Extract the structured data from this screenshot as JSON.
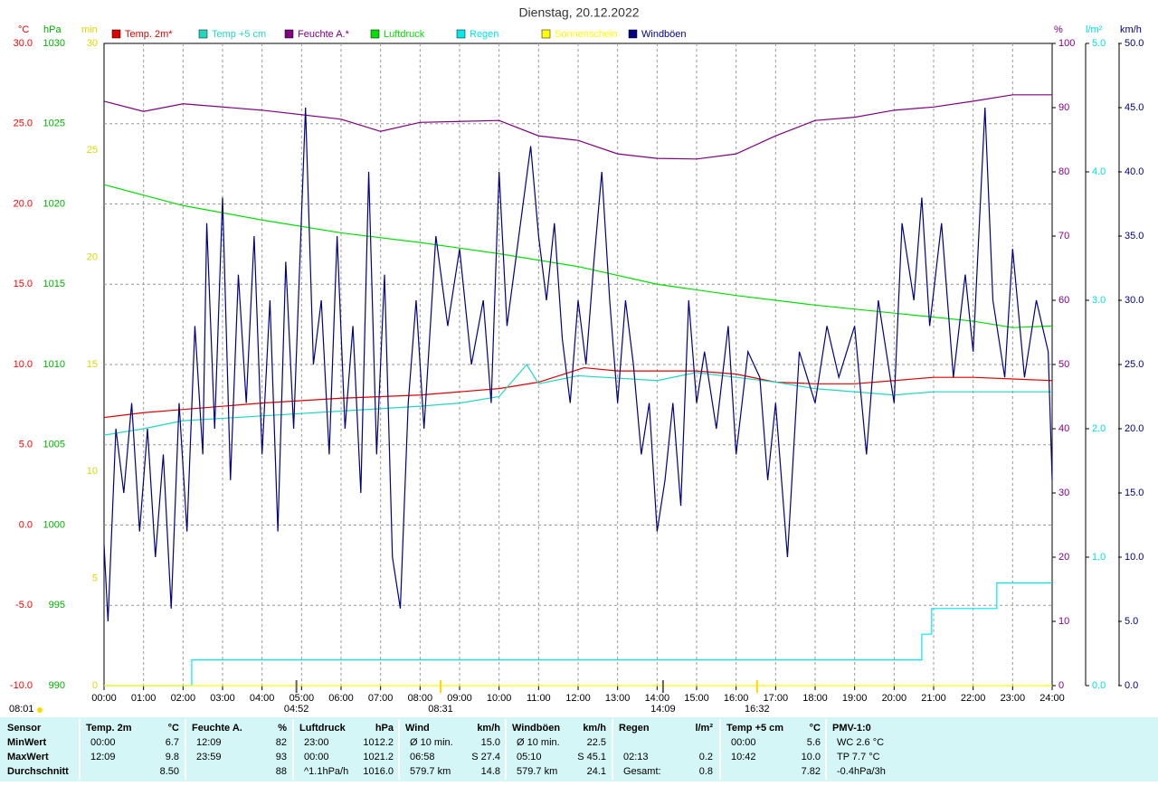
{
  "chart_data": {
    "type": "line",
    "title": "Dienstag, 20.12.2022",
    "grid": true,
    "xlim": [
      0,
      24
    ],
    "xticks": [
      {
        "value": 0,
        "label": "00:00"
      },
      {
        "value": 1,
        "label": "01:00"
      },
      {
        "value": 2,
        "label": "02:00"
      },
      {
        "value": 3,
        "label": "03:00"
      },
      {
        "value": 4,
        "label": "04:00"
      },
      {
        "value": 5,
        "label": "05:00"
      },
      {
        "value": 6,
        "label": "06:00"
      },
      {
        "value": 7,
        "label": "07:00"
      },
      {
        "value": 8,
        "label": "08:00"
      },
      {
        "value": 9,
        "label": "09:00"
      },
      {
        "value": 10,
        "label": "10:00"
      },
      {
        "value": 11,
        "label": "11:00"
      },
      {
        "value": 12,
        "label": "12:00"
      },
      {
        "value": 13,
        "label": "13:00"
      },
      {
        "value": 14,
        "label": "14:00"
      },
      {
        "value": 15,
        "label": "15:00"
      },
      {
        "value": 16,
        "label": "16:00"
      },
      {
        "value": 17,
        "label": "17:00"
      },
      {
        "value": 18,
        "label": "18:00"
      },
      {
        "value": 19,
        "label": "19:00"
      },
      {
        "value": 20,
        "label": "20:00"
      },
      {
        "value": 21,
        "label": "21:00"
      },
      {
        "value": 22,
        "label": "22:00"
      },
      {
        "value": 23,
        "label": "23:00"
      },
      {
        "value": 24,
        "label": "24:00"
      }
    ],
    "axes": [
      {
        "unit": "°C",
        "side": "left",
        "color": "#ff0000",
        "lim": [
          -10,
          30
        ],
        "ticks": [
          {
            "value": -10,
            "label": "-10.0"
          },
          {
            "value": -5,
            "label": "-5.0"
          },
          {
            "value": 0,
            "label": "0.0"
          },
          {
            "value": 5,
            "label": "5.0"
          },
          {
            "value": 10,
            "label": "10.0"
          },
          {
            "value": 15,
            "label": "15.0"
          },
          {
            "value": 20,
            "label": "20.0"
          },
          {
            "value": 25,
            "label": "25.0"
          },
          {
            "value": 30,
            "label": "30.0"
          }
        ]
      },
      {
        "unit": "hPa",
        "side": "left",
        "color": "#00b000",
        "lim": [
          990,
          1030
        ],
        "ticks": [
          990,
          995,
          1000,
          1005,
          1010,
          1015,
          1020,
          1025,
          1030
        ]
      },
      {
        "unit": "min",
        "side": "left",
        "color": "#d8d800",
        "lim": [
          0,
          30
        ],
        "ticks": [
          0,
          5,
          10,
          15,
          20,
          25,
          30
        ]
      },
      {
        "unit": "%",
        "side": "right",
        "color": "#800080",
        "lim": [
          0,
          100
        ],
        "ticks": [
          0,
          10,
          20,
          30,
          40,
          50,
          60,
          70,
          80,
          90,
          100
        ]
      },
      {
        "unit": "l/m²",
        "side": "right",
        "color": "#00e0e0",
        "lim": [
          0,
          5
        ],
        "ticks": [
          {
            "value": 0,
            "label": "0.0"
          },
          {
            "value": 1,
            "label": "1.0"
          },
          {
            "value": 2,
            "label": "2.0"
          },
          {
            "value": 3,
            "label": "3.0"
          },
          {
            "value": 4,
            "label": "4.0"
          },
          {
            "value": 5,
            "label": "5.0"
          }
        ]
      },
      {
        "unit": "km/h",
        "side": "right",
        "color": "#000080",
        "lim": [
          0,
          50
        ],
        "ticks": [
          {
            "value": 0,
            "label": "0.0"
          },
          {
            "value": 5,
            "label": "5.0"
          },
          {
            "value": 10,
            "label": "10.0"
          },
          {
            "value": 15,
            "label": "15.0"
          },
          {
            "value": 20,
            "label": "20.0"
          },
          {
            "value": 25,
            "label": "25.0"
          },
          {
            "value": 30,
            "label": "30.0"
          },
          {
            "value": 35,
            "label": "35.0"
          },
          {
            "value": 40,
            "label": "40.0"
          },
          {
            "value": 45,
            "label": "45.0"
          },
          {
            "value": 50,
            "label": "50.0"
          }
        ]
      }
    ],
    "series": [
      {
        "name": "Temp. 2m*",
        "color": "#e00000",
        "axis": "°C",
        "x": [
          0,
          1,
          2,
          4,
          6,
          8,
          10,
          11,
          12.15,
          13,
          15,
          16,
          17,
          18,
          19,
          20,
          21,
          22,
          24
        ],
        "values": [
          6.7,
          7.0,
          7.2,
          7.6,
          7.9,
          8.1,
          8.5,
          8.9,
          9.8,
          9.6,
          9.6,
          9.4,
          8.9,
          8.8,
          8.8,
          9.0,
          9.2,
          9.2,
          9.0
        ]
      },
      {
        "name": "Temp +5 cm",
        "color": "#20d8c0",
        "axis": "°C",
        "x": [
          0,
          1,
          2,
          4,
          6,
          8,
          9,
          10,
          10.7,
          11,
          12,
          14,
          15,
          16,
          17,
          18,
          20,
          21,
          24
        ],
        "values": [
          5.6,
          6.0,
          6.5,
          6.8,
          7.1,
          7.4,
          7.6,
          8.0,
          10.0,
          8.8,
          9.3,
          9.0,
          9.5,
          9.2,
          8.9,
          8.5,
          8.1,
          8.3,
          8.3
        ]
      },
      {
        "name": "Feuchte A.*",
        "color": "#800080",
        "axis": "%",
        "x": [
          0,
          1,
          2,
          4,
          6,
          7,
          8,
          10,
          11,
          12,
          13,
          14,
          15,
          16,
          17,
          18,
          19,
          20,
          21,
          22,
          23,
          24
        ],
        "values": [
          91,
          89.4,
          90.6,
          89.6,
          88.2,
          86.3,
          87.7,
          88,
          85.6,
          84.9,
          82.8,
          82.1,
          82,
          82.8,
          85.6,
          88,
          88.5,
          89.6,
          90.1,
          91,
          92,
          92
        ]
      },
      {
        "name": "Luftdruck",
        "color": "#00e000",
        "axis": "hPa",
        "x": [
          0,
          2,
          4,
          6,
          8,
          10,
          12,
          14,
          16,
          18,
          20,
          22,
          23,
          24
        ],
        "values": [
          1021.2,
          1019.9,
          1019.0,
          1018.2,
          1017.6,
          1016.9,
          1016.1,
          1015.0,
          1014.3,
          1013.7,
          1013.2,
          1012.7,
          1012.3,
          1012.4
        ]
      },
      {
        "name": "Regen",
        "color": "#00e8e8",
        "axis": "l/m²",
        "x": [
          0,
          2.22,
          2.22,
          20.7,
          20.7,
          20.95,
          20.95,
          22.6,
          22.6,
          24
        ],
        "values": [
          0,
          0,
          0.2,
          0.2,
          0.4,
          0.4,
          0.6,
          0.6,
          0.8,
          0.8
        ]
      },
      {
        "name": "Sonnenschein",
        "color": "#ffff00",
        "axis": "min",
        "x": [
          0,
          24
        ],
        "values": [
          0,
          0
        ]
      },
      {
        "name": "Windböen",
        "color": "#000080",
        "axis": "km/h",
        "x": [
          0,
          0.1,
          0.3,
          0.5,
          0.7,
          0.9,
          1.1,
          1.3,
          1.5,
          1.7,
          1.9,
          2.1,
          2.3,
          2.5,
          2.6,
          2.8,
          3.0,
          3.2,
          3.4,
          3.6,
          3.8,
          4.0,
          4.2,
          4.4,
          4.6,
          4.8,
          5.1,
          5.3,
          5.5,
          5.7,
          5.9,
          6.1,
          6.3,
          6.5,
          6.7,
          6.9,
          7.1,
          7.3,
          7.5,
          7.7,
          7.9,
          8.1,
          8.4,
          8.7,
          9.0,
          9.3,
          9.6,
          9.8,
          10.0,
          10.2,
          10.5,
          10.8,
          11.0,
          11.2,
          11.4,
          11.6,
          11.8,
          12.0,
          12.2,
          12.4,
          12.6,
          12.8,
          13.0,
          13.2,
          13.4,
          13.6,
          13.8,
          14.0,
          14.2,
          14.4,
          14.6,
          14.8,
          15.0,
          15.2,
          15.5,
          15.8,
          16.0,
          16.3,
          16.6,
          16.8,
          17.0,
          17.3,
          17.6,
          18.0,
          18.3,
          18.6,
          19.0,
          19.3,
          19.6,
          20.0,
          20.2,
          20.5,
          20.7,
          20.9,
          21.2,
          21.5,
          21.8,
          22.0,
          22.3,
          22.5,
          22.8,
          23.0,
          23.3,
          23.6,
          23.9,
          24.0
        ],
        "values": [
          11,
          5,
          20,
          15,
          22,
          12,
          20,
          10,
          18,
          6,
          22,
          12,
          28,
          18,
          36,
          20,
          38,
          16,
          32,
          22,
          35,
          18,
          30,
          12,
          33,
          20,
          45,
          25,
          30,
          18,
          35,
          20,
          28,
          15,
          40,
          18,
          32,
          10,
          6,
          22,
          30,
          20,
          35,
          28,
          34,
          25,
          30,
          22,
          40,
          28,
          35,
          42,
          35,
          30,
          36,
          27,
          22,
          30,
          25,
          33,
          40,
          30,
          22,
          30,
          25,
          18,
          22,
          12,
          16,
          22,
          14,
          30,
          22,
          26,
          20,
          28,
          18,
          26,
          24,
          16,
          22,
          10,
          26,
          22,
          28,
          24,
          28,
          18,
          30,
          22,
          36,
          30,
          38,
          28,
          36,
          24,
          32,
          26,
          45,
          30,
          24,
          34,
          24,
          30,
          26,
          16
        ]
      }
    ],
    "markers": [
      {
        "x": 4.87,
        "label": "04:52",
        "color": "#606060"
      },
      {
        "x": 8.52,
        "label": "08:31",
        "color": "#ffd800"
      },
      {
        "x": 14.15,
        "label": "14:09",
        "color": "#606060"
      },
      {
        "x": 16.53,
        "label": "16:32",
        "color": "#ffd800"
      }
    ],
    "sunrise": "08:01"
  },
  "table": {
    "header": "Sensor",
    "row_labels": [
      "MinWert",
      "MaxWert",
      "Durchschnitt"
    ],
    "columns": [
      {
        "title": "Temp. 2m",
        "unit": "°C",
        "cells": [
          {
            "left": "00:00",
            "right": "6.7"
          },
          {
            "left": "12:09",
            "right": "9.8"
          },
          {
            "right": "8.50"
          }
        ]
      },
      {
        "title": "Feuchte A.",
        "unit": "%",
        "cells": [
          {
            "left": "12:09",
            "right": "82"
          },
          {
            "left": "23:59",
            "right": "93"
          },
          {
            "right": "88"
          }
        ]
      },
      {
        "title": "Luftdruck",
        "unit": "hPa",
        "cells": [
          {
            "left": "23:00",
            "right": "1012.2"
          },
          {
            "left": "00:00",
            "right": "1021.2"
          },
          {
            "left": "^1.1hPa/h",
            "right": "1016.0"
          }
        ]
      },
      {
        "title": "Wind",
        "unit": "km/h",
        "cells": [
          {
            "left": "Ø 10 min.",
            "right": "15.0"
          },
          {
            "left": "06:58",
            "right": "S 27.4"
          },
          {
            "left": "579.7 km",
            "right": "14.8"
          }
        ]
      },
      {
        "title": "Windböen",
        "unit": "km/h",
        "cells": [
          {
            "left": "Ø 10 min.",
            "right": "22.5"
          },
          {
            "left": "05:10",
            "right": "S 45.1"
          },
          {
            "left": "579.7 km",
            "right": "24.1"
          }
        ]
      },
      {
        "title": "Regen",
        "unit": "l/m²",
        "cells": [
          {},
          {
            "left": "02:13",
            "right": "0.2"
          },
          {
            "left": "Gesamt:",
            "right": "0.8"
          }
        ]
      },
      {
        "title": "Temp +5 cm",
        "unit": "°C",
        "cells": [
          {
            "left": "00:00",
            "right": "5.6"
          },
          {
            "left": "10:42",
            "right": "10.0"
          },
          {
            "right": "7.82"
          }
        ]
      },
      {
        "title": "PMV-1:0",
        "cells": [
          {
            "left": "WC 2.6 °C"
          },
          {
            "left": "TP 7.7 °C"
          },
          {
            "left": "-0.4hPa/3h"
          }
        ]
      }
    ]
  }
}
